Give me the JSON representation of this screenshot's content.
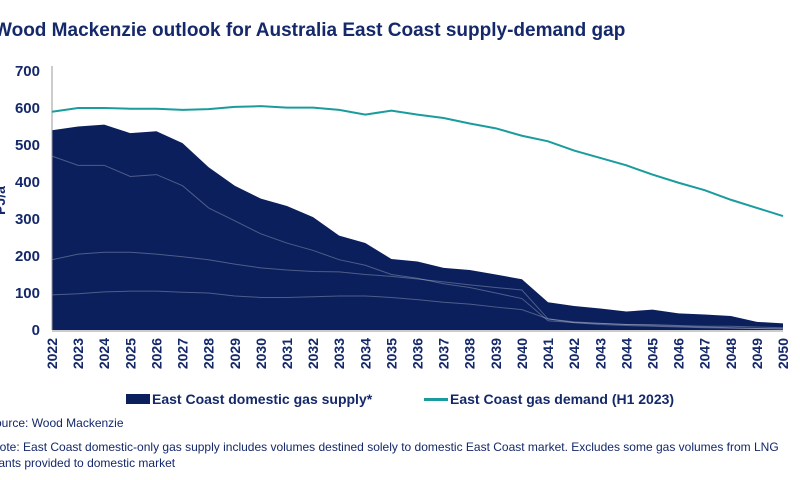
{
  "title": "Wood Mackenzie outlook for Australia East Coast supply-demand gap",
  "source": "Source: Wood Mackenzie",
  "note_line1": "Note: East Coast domestic-only gas supply includes volumes destined solely to domestic East Coast market. Excludes some gas volumes from LNG",
  "note_line2": "plants provided to domestic market",
  "colors": {
    "supply": "#0a1f5c",
    "demand": "#1a9c9c",
    "text": "#14286a"
  },
  "chart_data": {
    "type": "area",
    "title": "Wood Mackenzie outlook for Australia East Coast supply-demand gap",
    "ylabel": "PJ/a",
    "xlabel": "",
    "ylim": [
      0,
      700
    ],
    "yticks": [
      0,
      100,
      200,
      300,
      400,
      500,
      600,
      700
    ],
    "x": [
      "2022",
      "2023",
      "2024",
      "2025",
      "2026",
      "2027",
      "2028",
      "2029",
      "2030",
      "2031",
      "2032",
      "2033",
      "2034",
      "2035",
      "2036",
      "2037",
      "2038",
      "2039",
      "2040",
      "2041",
      "2042",
      "2043",
      "2044",
      "2045",
      "2046",
      "2047",
      "2048",
      "2049",
      "2050"
    ],
    "grid": false,
    "legend": "bottom",
    "series": [
      {
        "name": "East Coast domestic gas supply*",
        "type": "area",
        "values": [
          540,
          550,
          555,
          532,
          537,
          505,
          440,
          390,
          355,
          335,
          305,
          255,
          235,
          192,
          185,
          168,
          162,
          150,
          137,
          75,
          65,
          58,
          50,
          55,
          45,
          42,
          38,
          22,
          18
        ],
        "layer_boundaries": [
          [
            470,
            445,
            445,
            415,
            420,
            390,
            330,
            295,
            260,
            235,
            215,
            190,
            175,
            150,
            140,
            125,
            115,
            100,
            85,
            25,
            20,
            18,
            15,
            15,
            12,
            10,
            10,
            8,
            6
          ],
          [
            190,
            205,
            210,
            210,
            205,
            198,
            190,
            178,
            168,
            162,
            158,
            157,
            150,
            145,
            138,
            130,
            122,
            115,
            108,
            30,
            22,
            18,
            15,
            12,
            10,
            8,
            6,
            4,
            3
          ],
          [
            95,
            98,
            103,
            105,
            105,
            102,
            100,
            92,
            88,
            88,
            90,
            92,
            92,
            88,
            82,
            75,
            70,
            62,
            55,
            30,
            20,
            15,
            12,
            10,
            8,
            6,
            5,
            4,
            3
          ]
        ]
      },
      {
        "name": "East Coast gas demand (H1 2023)",
        "type": "line",
        "values": [
          590,
          600,
          600,
          598,
          598,
          595,
          597,
          603,
          605,
          601,
          601,
          595,
          582,
          593,
          582,
          573,
          558,
          545,
          525,
          510,
          485,
          465,
          445,
          420,
          398,
          378,
          352,
          330,
          308
        ]
      }
    ]
  }
}
